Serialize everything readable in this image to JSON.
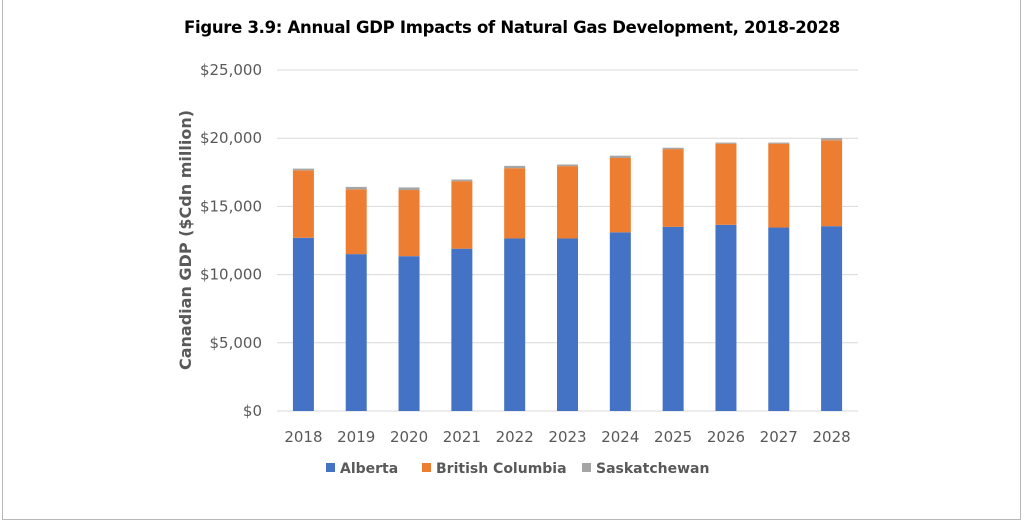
{
  "chart_data": {
    "type": "bar",
    "stacked": true,
    "title": "Figure 3.9:  Annual GDP Impacts of Natural Gas Development, 2018-2028",
    "xlabel": "",
    "ylabel": "Canadian GDP ($Cdn million)",
    "ylim": [
      0,
      25000
    ],
    "yticks": [
      "$0",
      "$5,000",
      "$10,000",
      "$15,000",
      "$20,000",
      "$25,000"
    ],
    "grid": true,
    "legend": "bottom",
    "categories": [
      "2018",
      "2019",
      "2020",
      "2021",
      "2022",
      "2023",
      "2024",
      "2025",
      "2026",
      "2027",
      "2028"
    ],
    "series": [
      {
        "name": "Alberta",
        "color": "#4472c4",
        "values": [
          12700,
          11500,
          11350,
          11900,
          12650,
          12650,
          13100,
          13500,
          13650,
          13450,
          13550
        ]
      },
      {
        "name": "British Columbia",
        "color": "#ed7d31",
        "values": [
          4950,
          4750,
          4850,
          4950,
          5150,
          5300,
          5450,
          5700,
          5950,
          6150,
          6300
        ]
      },
      {
        "name": "Saskatchewan",
        "color": "#a5a5a5",
        "values": [
          120,
          180,
          190,
          120,
          170,
          120,
          170,
          100,
          80,
          80,
          150
        ]
      }
    ]
  }
}
